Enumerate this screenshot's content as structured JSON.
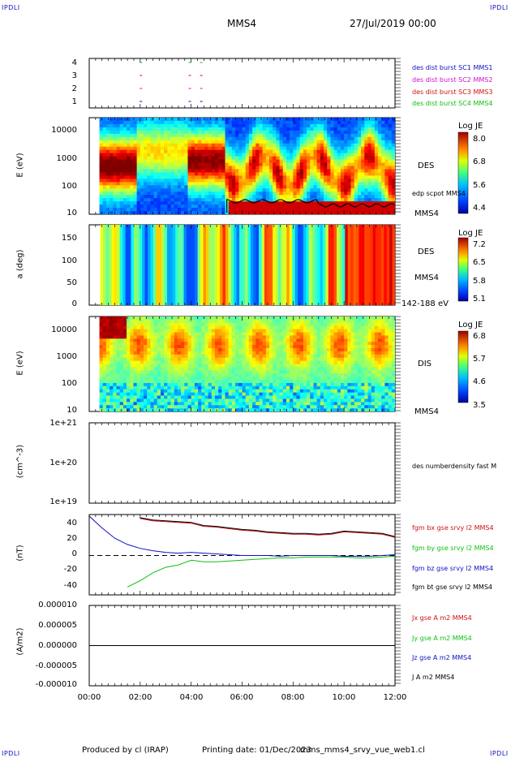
{
  "header": {
    "corner_label": "IPDLI",
    "spacecraft": "MMS4",
    "date": "27/Jul/2019 00:00"
  },
  "footer": {
    "producer": "Produced by cl (IRAP)",
    "printing": "Printing date: 01/Dec/2023",
    "file": "mms_mms4_srvy_vue_web1.cl"
  },
  "colors": {
    "sc1": "#1010c0",
    "sc2": "#d010d0",
    "sc3": "#d01010",
    "sc4": "#10c010",
    "bx": "#d01010",
    "by": "#10c010",
    "bz": "#1010c0",
    "bt": "#000000"
  },
  "chart_data": [
    {
      "type": "scatter",
      "panel": "burst-availability",
      "yticks": [
        "4",
        "3",
        "2",
        "1"
      ],
      "legend": [
        {
          "label": "des dist burst SC1 MMS1",
          "color": "#1010c0"
        },
        {
          "label": "des dist burst SC2 MMS2",
          "color": "#d010d0"
        },
        {
          "label": "des dist burst SC3 MMS3",
          "color": "#d01010"
        },
        {
          "label": "des dist burst SC4 MMS4",
          "color": "#10c010"
        }
      ],
      "marks_hours": [
        1.98,
        3.9,
        4.35
      ]
    },
    {
      "type": "heatmap",
      "panel": "des-energy",
      "ylabel": "E (eV)",
      "yticks": [
        "10000",
        "1000",
        "100",
        "10"
      ],
      "ylim": [
        10,
        30000
      ],
      "log_y": true,
      "instrument": "DES",
      "overlay_label": "edp scpot MMS4",
      "spacecraft": "MMS4",
      "colorbar": {
        "title": "Log JE",
        "ticks": [
          "8.0",
          "6.8",
          "5.6",
          "4.4"
        ]
      }
    },
    {
      "type": "heatmap",
      "panel": "des-pitch-angle",
      "ylabel": "a (deg)",
      "yticks": [
        "150",
        "100",
        "50",
        "0"
      ],
      "ylim": [
        0,
        180
      ],
      "instrument": "DES",
      "spacecraft": "MMS4",
      "energy_range": "142-188 eV",
      "colorbar": {
        "title": "Log JE",
        "ticks": [
          "7.2",
          "6.5",
          "5.8",
          "5.1"
        ]
      }
    },
    {
      "type": "heatmap",
      "panel": "dis-energy",
      "ylabel": "E (eV)",
      "yticks": [
        "10000",
        "1000",
        "100",
        "10"
      ],
      "ylim": [
        10,
        30000
      ],
      "log_y": true,
      "instrument": "DIS",
      "spacecraft": "MMS4",
      "colorbar": {
        "title": "Log JE",
        "ticks": [
          "6.8",
          "5.7",
          "4.6",
          "3.5"
        ]
      }
    },
    {
      "type": "line",
      "panel": "density",
      "ylabel": "(cm^-3)",
      "yticks": [
        "1e+21",
        "1e+20",
        "1e+19"
      ],
      "legend": [
        {
          "label": "des numberdensity fast M",
          "color": "#000000"
        }
      ],
      "series": []
    },
    {
      "type": "line",
      "panel": "magnetic-field",
      "ylabel": "(nT)",
      "yticks": [
        "40",
        "20",
        "0",
        "-20",
        "-40"
      ],
      "ylim": [
        -50,
        52
      ],
      "x_hours": [
        0,
        0.5,
        1,
        1.5,
        2,
        2.5,
        3,
        3.5,
        4,
        4.5,
        5,
        5.5,
        6,
        6.5,
        7,
        7.5,
        8,
        8.5,
        9,
        9.5,
        10,
        10.5,
        11,
        11.5,
        12
      ],
      "series": [
        {
          "name": "fgm bx gse srvy l2 MMS4",
          "color": "#d01010",
          "values": [
            null,
            null,
            null,
            null,
            47,
            44,
            43,
            42,
            41,
            37,
            36,
            34,
            32,
            31,
            29,
            28,
            27,
            27,
            26,
            27,
            30,
            29,
            28,
            27,
            23
          ]
        },
        {
          "name": "fgm by gse srvy l2 MMS4",
          "color": "#10c010",
          "values": [
            null,
            null,
            null,
            -40,
            -32,
            -22,
            -15,
            -12,
            -6,
            -8,
            -8,
            -7,
            -6,
            -5,
            -4,
            -3,
            -3,
            -2,
            -2,
            -2,
            -2,
            -3,
            -3,
            -2,
            -1
          ]
        },
        {
          "name": "fgm bz gse srvy l2 MMS4",
          "color": "#1010c0",
          "values": [
            50,
            35,
            22,
            14,
            9,
            6,
            4,
            3,
            4,
            3,
            2,
            1,
            0,
            0,
            0,
            -1,
            0,
            0,
            0,
            0,
            -1,
            -1,
            -1,
            0,
            1
          ]
        },
        {
          "name": "fgm bt gse srvy l2 MMS4",
          "color": "#000000",
          "values": [
            null,
            null,
            null,
            null,
            48,
            45,
            44,
            43,
            42,
            38,
            37,
            35,
            33,
            32,
            30,
            29,
            28,
            28,
            27,
            28,
            31,
            30,
            29,
            28,
            24
          ]
        }
      ]
    },
    {
      "type": "line",
      "panel": "current-density",
      "ylabel": "(A/m2)",
      "yticks": [
        "0.000010",
        "0.000005",
        "0.000000",
        "-0.000005",
        "-0.000010"
      ],
      "ylim": [
        -1e-05,
        1e-05
      ],
      "series": [
        {
          "name": "Jx gse A m2 MMS4",
          "color": "#d01010",
          "values": []
        },
        {
          "name": "Jy gse A m2 MMS4",
          "color": "#10c010",
          "values": []
        },
        {
          "name": "Jz gse A m2 MMS4",
          "color": "#1010c0",
          "values": []
        },
        {
          "name": "J A m2 MMS4",
          "color": "#000000",
          "values": [
            0,
            0,
            0,
            0,
            0,
            0,
            0,
            0,
            0,
            0,
            0,
            0,
            0
          ]
        }
      ]
    }
  ],
  "xaxis": {
    "ticks": [
      "00:00",
      "02:00",
      "04:00",
      "06:00",
      "08:00",
      "10:00",
      "12:00"
    ],
    "range_hours": [
      0,
      12
    ]
  }
}
